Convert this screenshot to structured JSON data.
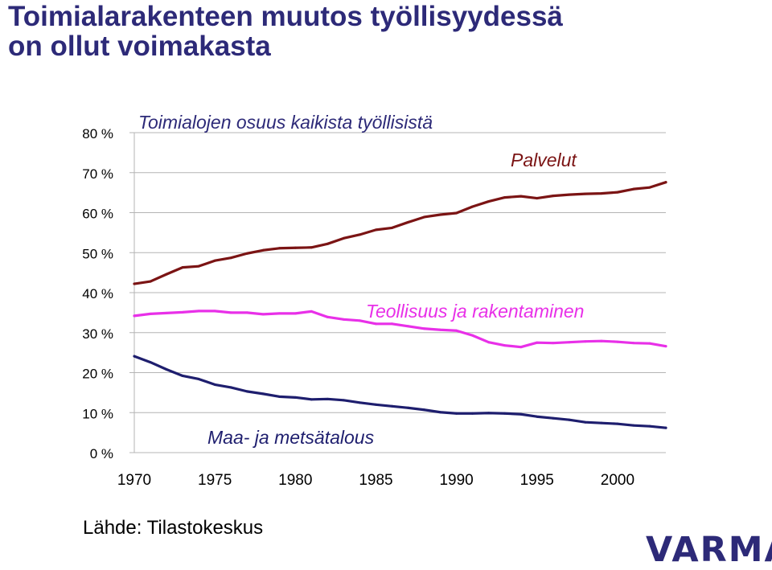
{
  "slide": {
    "title_line1": "Toimialarakenteen muutos työllisyydessä",
    "title_line2": "on ollut voimakasta",
    "source": "Lähde: Tilastokeskus",
    "logo_text": "VARMA"
  },
  "colors": {
    "title": "#2d2a78",
    "palvelut": "#7b1414",
    "teollisuus": "#e830e8",
    "maa": "#1e1e6e",
    "gridline": "#b4b4b4",
    "logo": "#2d2a78"
  },
  "chart_data": {
    "type": "line",
    "title": "Toimialojen osuus kaikista työllisistä",
    "xlabel": "",
    "ylabel": "",
    "xlim": [
      1970,
      2003
    ],
    "ylim": [
      0,
      80
    ],
    "grid": true,
    "x_tick_labels": [
      "1970",
      "1975",
      "1980",
      "1985",
      "1990",
      "1995",
      "2000"
    ],
    "y_tick_labels": [
      "0 %",
      "10 %",
      "20 %",
      "30 %",
      "40 %",
      "50 %",
      "60 %",
      "70 %",
      "80 %"
    ],
    "x": [
      1970,
      1971,
      1972,
      1973,
      1974,
      1975,
      1976,
      1977,
      1978,
      1979,
      1980,
      1981,
      1982,
      1983,
      1984,
      1985,
      1986,
      1987,
      1988,
      1989,
      1990,
      1991,
      1992,
      1993,
      1994,
      1995,
      1996,
      1997,
      1998,
      1999,
      2000,
      2001,
      2002,
      2003
    ],
    "series": [
      {
        "name": "Palvelut",
        "color_key": "palvelut",
        "values": [
          42.2,
          42.8,
          44.6,
          46.3,
          46.6,
          48.0,
          48.7,
          49.8,
          50.6,
          51.1,
          51.2,
          51.3,
          52.2,
          53.6,
          54.5,
          55.7,
          56.2,
          57.6,
          58.9,
          59.5,
          59.9,
          61.5,
          62.8,
          63.8,
          64.1,
          63.6,
          64.2,
          64.5,
          64.7,
          64.8,
          65.1,
          65.9,
          66.3,
          67.6
        ]
      },
      {
        "name": "Teollisuus ja rakentaminen",
        "color_key": "teollisuus",
        "values": [
          34.2,
          34.7,
          34.9,
          35.1,
          35.4,
          35.4,
          35.0,
          35.0,
          34.6,
          34.8,
          34.8,
          35.3,
          33.9,
          33.3,
          33.0,
          32.2,
          32.2,
          31.6,
          31.0,
          30.7,
          30.5,
          29.3,
          27.6,
          26.8,
          26.4,
          27.5,
          27.4,
          27.6,
          27.8,
          27.9,
          27.7,
          27.4,
          27.3,
          26.6
        ]
      },
      {
        "name": "Maa- ja metsätalous",
        "color_key": "maa",
        "values": [
          24.1,
          22.6,
          20.8,
          19.2,
          18.4,
          17.0,
          16.3,
          15.3,
          14.7,
          14.0,
          13.8,
          13.3,
          13.4,
          13.1,
          12.5,
          12.0,
          11.6,
          11.2,
          10.7,
          10.1,
          9.8,
          9.8,
          9.9,
          9.8,
          9.6,
          9.0,
          8.6,
          8.2,
          7.6,
          7.4,
          7.2,
          6.8,
          6.6,
          6.2
        ]
      }
    ]
  }
}
